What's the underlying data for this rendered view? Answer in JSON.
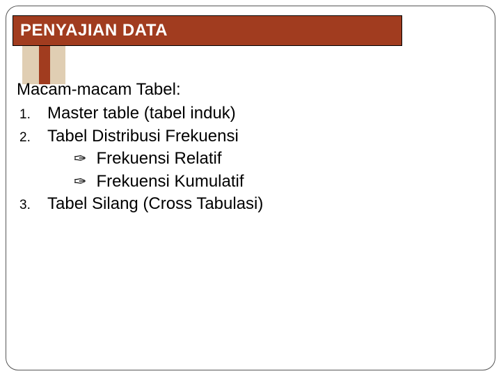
{
  "colors": {
    "title_bg": "#a13c1f",
    "title_text": "#ffffff",
    "deco_light": "#e0ceb3",
    "deco_dark": "#a13c1f",
    "border": "#555555",
    "text": "#000000"
  },
  "title": "PENYAJIAN  DATA",
  "heading": "Macam-macam Tabel:",
  "items": [
    {
      "num": "1.",
      "text": "Master table (tabel induk)"
    },
    {
      "num": "2.",
      "text": "Tabel Distribusi Frekuensi"
    }
  ],
  "subitems": [
    {
      "bullet": "✑",
      "text": "Frekuensi Relatif"
    },
    {
      "bullet": "✑",
      "text": "Frekuensi Kumulatif"
    }
  ],
  "item3": {
    "num": "3.",
    "text": "Tabel Silang (Cross Tabulasi)"
  },
  "typography": {
    "title_fontsize": 24,
    "body_fontsize": 24,
    "num_fontsize": 19
  }
}
